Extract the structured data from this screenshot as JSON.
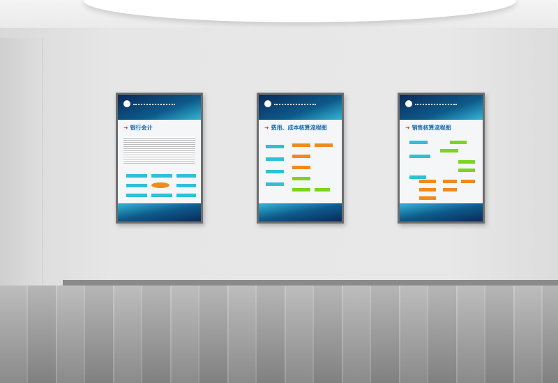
{
  "scene": "gallery wall with three posters",
  "posters": [
    {
      "title": "银行会计",
      "accent": "#2fc0d6"
    },
    {
      "title": "费用、成本核算流程图",
      "accent": "#f08a1c"
    },
    {
      "title": "销售核算流程图",
      "accent": "#7ed320"
    }
  ],
  "colors": {
    "wall": "#e6e6e6",
    "frame": "#6d6d6d",
    "poster_blue": "#0d5a8a"
  }
}
